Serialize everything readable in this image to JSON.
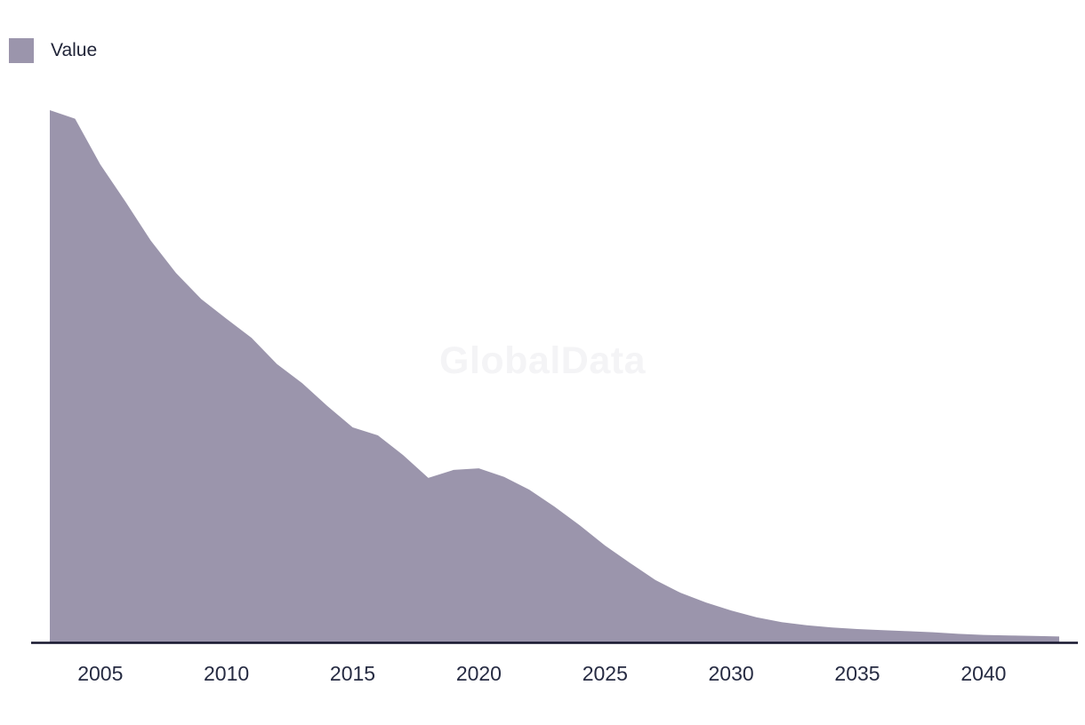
{
  "legend": {
    "label": "Value"
  },
  "watermark": "GlobalData",
  "colors": {
    "background": "#ffffff",
    "area": "#9b95ac",
    "axis_line": "#15152d",
    "tick_label": "#262b42",
    "legend_text": "#1f2337",
    "watermark": "#f4f4f6"
  },
  "chart_data": {
    "type": "area",
    "title": "",
    "xlabel": "",
    "ylabel": "",
    "x_ticks": [
      2005,
      2010,
      2015,
      2020,
      2025,
      2030,
      2035,
      2040
    ],
    "xlim": [
      2003,
      2043
    ],
    "ylim": [
      0,
      100
    ],
    "grid": false,
    "y_axis_visible": false,
    "legend_position": "top-left",
    "units": "index, peak year 2003 = 100 (no y-axis labels shown)",
    "series": [
      {
        "name": "Value",
        "x": [
          2003,
          2004,
          2005,
          2006,
          2007,
          2008,
          2009,
          2010,
          2011,
          2012,
          2013,
          2014,
          2015,
          2016,
          2017,
          2018,
          2019,
          2020,
          2021,
          2022,
          2023,
          2024,
          2025,
          2026,
          2027,
          2028,
          2029,
          2030,
          2031,
          2032,
          2033,
          2034,
          2035,
          2036,
          2037,
          2038,
          2039,
          2040,
          2041,
          2042,
          2043
        ],
        "values": [
          100,
          98.4,
          89.8,
          82.8,
          75.5,
          69.4,
          64.5,
          60.8,
          57.2,
          52.3,
          48.7,
          44.4,
          40.4,
          38.9,
          35.2,
          30.9,
          32.4,
          32.7,
          31.1,
          28.7,
          25.5,
          22.0,
          18.2,
          14.9,
          11.7,
          9.3,
          7.5,
          6.0,
          4.7,
          3.8,
          3.2,
          2.8,
          2.5,
          2.3,
          2.1,
          1.9,
          1.6,
          1.4,
          1.3,
          1.2,
          1.1
        ]
      }
    ]
  }
}
